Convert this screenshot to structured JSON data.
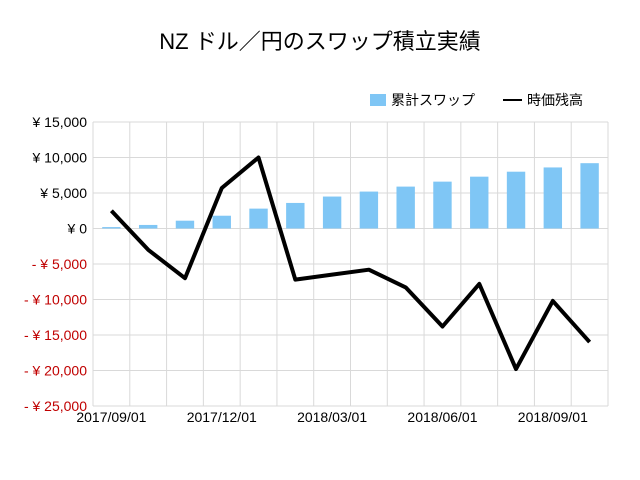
{
  "chart_data": {
    "type": "bar",
    "title": "NZ ドル／円のスワップ積立実績",
    "xlabel": "",
    "ylabel": "",
    "ylim": [
      -25000,
      15000
    ],
    "y_ticks": [
      15000,
      10000,
      5000,
      0,
      -5000,
      -10000,
      -15000,
      -20000,
      -25000
    ],
    "y_tick_labels": [
      "¥ 15,000",
      "¥ 10,000",
      "¥ 5,000",
      "¥ 0",
      "- ¥ 5,000",
      "- ¥ 10,000",
      "- ¥ 15,000",
      "- ¥ 20,000",
      "- ¥ 25,000"
    ],
    "x_tick_labels": [
      "2017/09/01",
      "2017/12/01",
      "2018/03/01",
      "2018/06/01",
      "2018/09/01"
    ],
    "x_tick_label_index": [
      0,
      3,
      6,
      9,
      12
    ],
    "grid": true,
    "legend_position": "top-right",
    "colors": {
      "bar": "#7fc6f5",
      "line": "#000000",
      "grid": "#d9d9d9",
      "negative_label": "#c00000"
    },
    "categories": [
      "2017/09",
      "2017/10",
      "2017/11",
      "2017/12",
      "2018/01",
      "2018/02",
      "2018/03",
      "2018/04",
      "2018/05",
      "2018/06",
      "2018/07",
      "2018/08",
      "2018/09",
      "2018/10"
    ],
    "series": [
      {
        "name": "累計スワップ",
        "kind": "bar",
        "values": [
          200,
          500,
          1100,
          1800,
          2800,
          3600,
          4500,
          5200,
          5900,
          6600,
          7300,
          8000,
          8600,
          9200
        ]
      },
      {
        "name": "時価残高",
        "kind": "line",
        "values": [
          2500,
          -3000,
          -7000,
          5700,
          10000,
          -7200,
          -6500,
          -5800,
          -8300,
          -13800,
          -7800,
          -19800,
          -10200,
          -16000
        ]
      }
    ]
  }
}
